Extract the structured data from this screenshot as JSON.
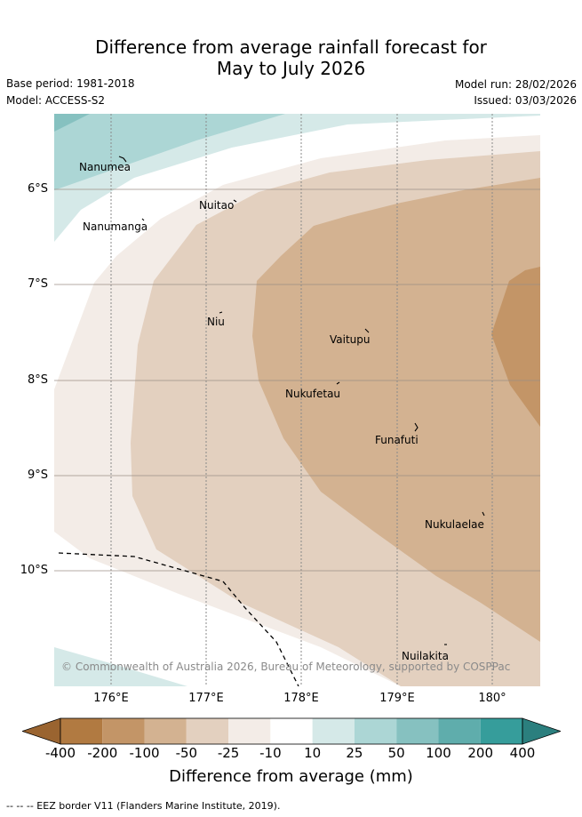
{
  "header": {
    "title_line1": "Difference from average rainfall forecast for",
    "title_line2": "May to July 2026",
    "base_period": "Base period: 1981-2018",
    "model": "Model: ACCESS-S2",
    "model_run": "Model run: 28/02/2026",
    "issued": "Issued: 03/03/2026"
  },
  "map": {
    "latitude_labels": [
      "6°S",
      "7°S",
      "8°S",
      "9°S",
      "10°S"
    ],
    "longitude_labels": [
      "176°E",
      "177°E",
      "178°E",
      "179°E",
      "180°"
    ],
    "islands": [
      {
        "name": "Nanumea"
      },
      {
        "name": "Nuitao"
      },
      {
        "name": "Nanumanga"
      },
      {
        "name": "Niu"
      },
      {
        "name": "Vaitupu"
      },
      {
        "name": "Nukufetau"
      },
      {
        "name": "Funafuti"
      },
      {
        "name": "Nukulaelae"
      },
      {
        "name": "Nuilakita"
      }
    ],
    "copyright": "© Commonwealth of Australia 2026, Bureau of Meteorology, supported by COSPPac"
  },
  "colorbar": {
    "ticks": [
      "-400",
      "-200",
      "-100",
      "-50",
      "-25",
      "-10",
      "10",
      "25",
      "50",
      "100",
      "200",
      "400"
    ],
    "colors": [
      "#9a6430",
      "#b17a41",
      "#c39567",
      "#d3b291",
      "#e3d0bf",
      "#f3ece7",
      "#ffffff",
      "#d5e9e8",
      "#acd6d5",
      "#86c1c0",
      "#5fadac",
      "#369d9b",
      "#2b7f7e"
    ],
    "label": "Difference from average (mm)"
  },
  "footer": {
    "eez_legend": "-- -- -- EEZ border V11 (Flanders Marine Institute, 2019)."
  }
}
